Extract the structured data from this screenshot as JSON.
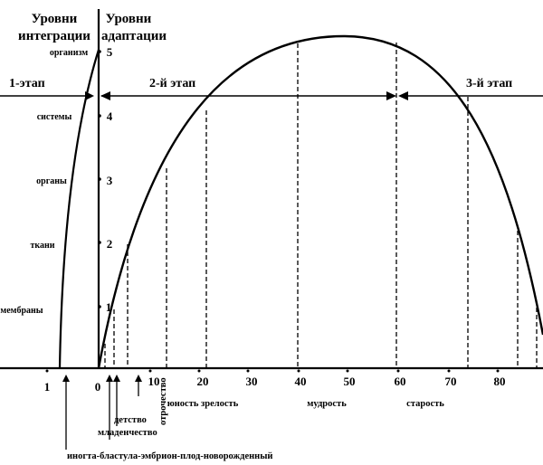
{
  "headers": {
    "integration": [
      "Уровни",
      "интеграции"
    ],
    "adaptation": [
      "Уровни",
      "адаптации"
    ]
  },
  "integration_levels": [
    "организм",
    "системы",
    "органы",
    "ткани",
    "мембраны"
  ],
  "adaptation_levels": [
    "5",
    "4",
    "3",
    "2",
    "1"
  ],
  "stages": {
    "first": "1-этап",
    "second": "2-й этап",
    "third": "3-й этап"
  },
  "x_axis": {
    "ticks": [
      "1",
      "0",
      "10",
      "20",
      "30",
      "40",
      "50",
      "60",
      "70",
      "80"
    ]
  },
  "periods": {
    "youth_maturity": "юность зрелость",
    "wisdom": "мудрость",
    "old_age": "старость",
    "adolescence": "отрочество",
    "infancy": "младенчество",
    "childhood": "детство",
    "prenatal": "иногта-бластула-эмбрион-плод-новорожденный"
  }
}
